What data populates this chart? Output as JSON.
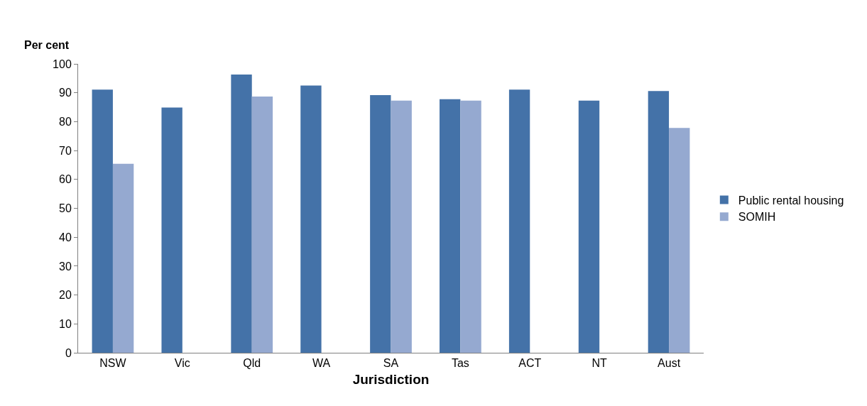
{
  "chart_data": {
    "type": "bar",
    "xlabel": "Jurisdiction",
    "ylabel": "Per cent",
    "categories": [
      "NSW",
      "Vic",
      "Qld",
      "WA",
      "SA",
      "Tas",
      "ACT",
      "NT",
      "Aust"
    ],
    "series": [
      {
        "name": "Public rental housing",
        "color": "#4472a8",
        "values": [
          91.1,
          84.9,
          96.3,
          92.5,
          89.2,
          87.8,
          91.1,
          87.3,
          90.6
        ]
      },
      {
        "name": "SOMIH",
        "color": "#95a9d0",
        "values": [
          65.4,
          null,
          88.7,
          null,
          87.3,
          87.3,
          null,
          null,
          77.8
        ]
      }
    ],
    "ylim": [
      0,
      100
    ],
    "yticks": [
      0,
      10,
      20,
      30,
      40,
      50,
      60,
      70,
      80,
      90,
      100
    ],
    "legend": "right"
  }
}
